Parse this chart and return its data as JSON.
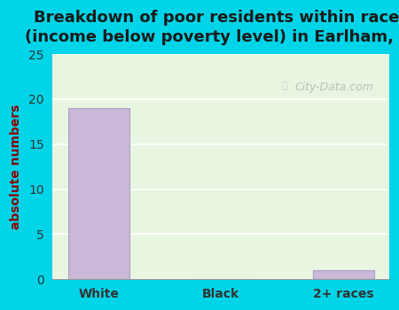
{
  "categories": [
    "White",
    "Black",
    "2+ races"
  ],
  "values": [
    19,
    0,
    1
  ],
  "bar_color": "#c9b8d8",
  "bar_edge_color": "#b0a0c8",
  "title": "Breakdown of poor residents within races\n(income below poverty level) in Earlham, IA",
  "ylabel": "absolute numbers",
  "ylim": [
    0,
    25
  ],
  "yticks": [
    0,
    5,
    10,
    15,
    20,
    25
  ],
  "background_color_left": "#00d4e8",
  "plot_bg_color_top": "#e8f5e0",
  "plot_bg_color_bottom": "#f0ffe8",
  "title_fontsize": 13,
  "ylabel_fontsize": 10,
  "tick_fontsize": 10,
  "watermark_text": "City-Data.com"
}
